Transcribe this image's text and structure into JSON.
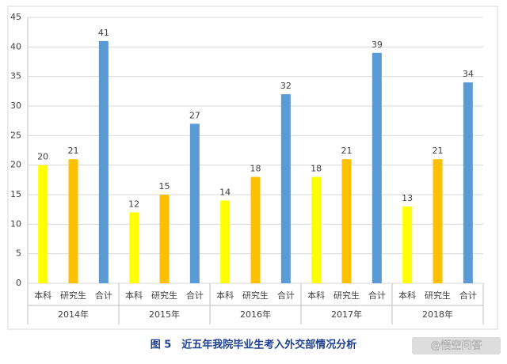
{
  "chart_data": {
    "type": "bar",
    "caption": "图 5　近五年我院毕业生考入外交部情况分析",
    "watermark": "@悟空问答",
    "categories": [
      "2014年",
      "2015年",
      "2016年",
      "2017年",
      "2018年"
    ],
    "series": [
      {
        "name": "本科",
        "color": "#ffff00",
        "values": [
          20,
          12,
          14,
          18,
          13
        ]
      },
      {
        "name": "研究生",
        "color": "#ffc000",
        "values": [
          21,
          15,
          18,
          21,
          21
        ]
      },
      {
        "name": "合计",
        "color": "#5b9bd5",
        "values": [
          41,
          27,
          32,
          39,
          34
        ]
      }
    ],
    "ylim": [
      0,
      45
    ],
    "yticks": [
      0,
      5,
      10,
      15,
      20,
      25,
      30,
      35,
      40,
      45
    ],
    "grid": true
  }
}
